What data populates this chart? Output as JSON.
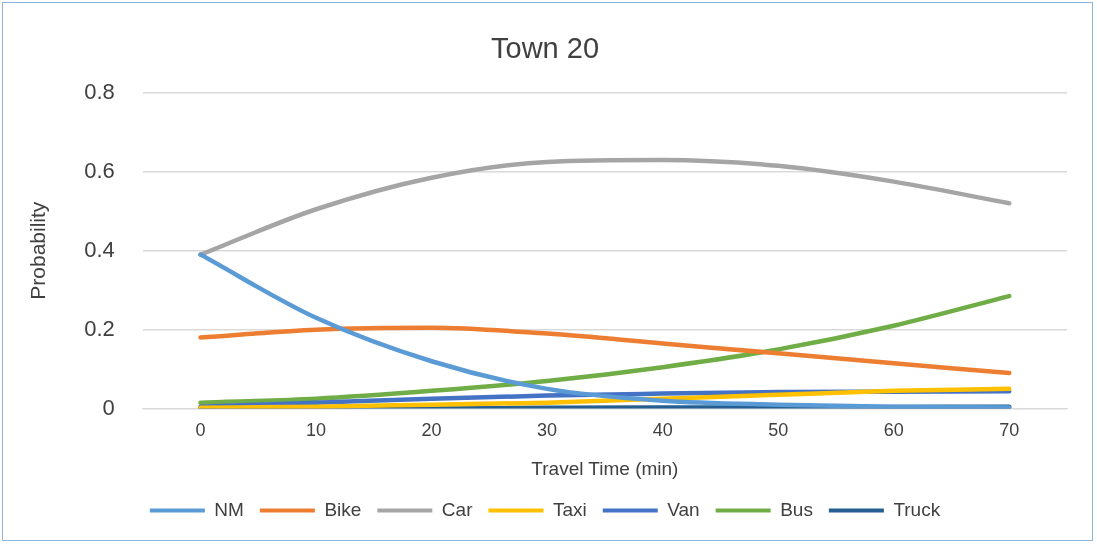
{
  "chart_data": {
    "type": "line",
    "title": "Town 20",
    "xlabel": "Travel Time (min)",
    "ylabel": "Probability",
    "categories": [
      "0",
      "10",
      "20",
      "30",
      "40",
      "50",
      "60",
      "70"
    ],
    "series": [
      {
        "name": "NM",
        "color": "#5b9bd5",
        "values": [
          0.39,
          0.23,
          0.12,
          0.05,
          0.02,
          0.01,
          0.005,
          0.003
        ]
      },
      {
        "name": "Bike",
        "color": "#ed7d31",
        "values": [
          0.18,
          0.2,
          0.205,
          0.19,
          0.165,
          0.14,
          0.115,
          0.09
        ]
      },
      {
        "name": "Car",
        "color": "#a5a5a5",
        "values": [
          0.39,
          0.505,
          0.585,
          0.625,
          0.63,
          0.615,
          0.575,
          0.52
        ]
      },
      {
        "name": "Taxi",
        "color": "#ffc000",
        "values": [
          0.002,
          0.005,
          0.01,
          0.015,
          0.025,
          0.035,
          0.045,
          0.05
        ]
      },
      {
        "name": "Van",
        "color": "#4472c4",
        "values": [
          0.005,
          0.015,
          0.025,
          0.033,
          0.038,
          0.042,
          0.043,
          0.044
        ]
      },
      {
        "name": "Bus",
        "color": "#70ad47",
        "values": [
          0.015,
          0.025,
          0.045,
          0.07,
          0.105,
          0.15,
          0.21,
          0.285
        ]
      },
      {
        "name": "Truck",
        "color": "#255e91",
        "values": [
          0,
          0,
          0,
          0.002,
          0.003,
          0.003,
          0.004,
          0.005
        ]
      }
    ],
    "ylim": [
      0,
      0.8
    ],
    "yticks": [
      0,
      0.2,
      0.4,
      0.6,
      0.8
    ],
    "grid": "y",
    "legend": "bottom",
    "marker": "none",
    "line_style": "solid"
  }
}
